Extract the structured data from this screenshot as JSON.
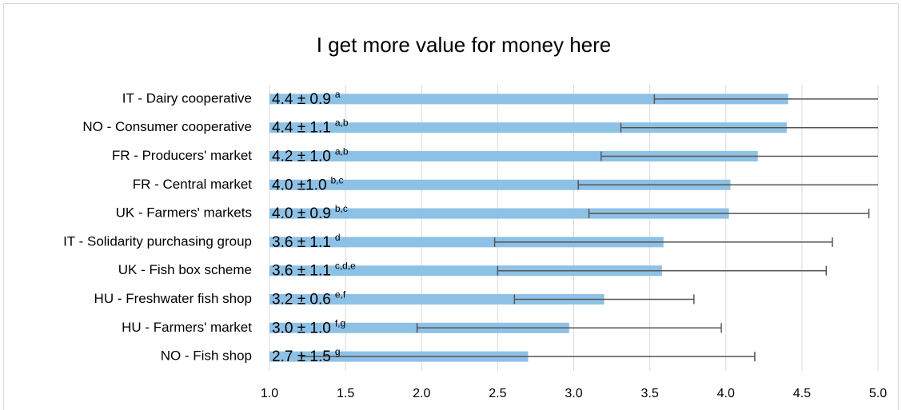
{
  "chart_data": {
    "type": "hbar",
    "title": "I get more value for money here",
    "categories": [
      "IT - Dairy cooperative",
      "NO - Consumer cooperative",
      "FR - Producers' market",
      "FR - Central market",
      "UK - Farmers' markets",
      "IT - Solidarity purchasing group",
      "UK -  Fish box scheme",
      "HU - Freshwater fish shop",
      "HU - Farmers' market",
      "NO - Fish shop"
    ],
    "values": [
      4.41,
      4.4,
      4.21,
      4.03,
      4.02,
      3.59,
      3.58,
      3.2,
      2.97,
      2.7
    ],
    "errors": [
      0.88,
      1.09,
      1.03,
      1.0,
      0.92,
      1.11,
      1.08,
      0.59,
      1.0,
      1.49
    ],
    "value_labels": [
      "4.4 ± 0.9",
      "4.4 ± 1.1",
      "4.2 ± 1.0",
      "4.0 ±1.0",
      "4.0 ± 0.9",
      "3.6 ± 1.1",
      "3.6  ± 1.1",
      "3.2 ± 0.6",
      "3.0 ± 1.0",
      "2.7 ± 1.5"
    ],
    "letters": [
      "a",
      "a,b",
      "a,b",
      "b,c",
      "b,c",
      "d",
      "c,d,e",
      "e,f",
      "f,g",
      "g"
    ],
    "color": "#8ec1e6",
    "error_color": "#555555",
    "xlim": [
      1.0,
      5.0
    ],
    "xticks": [
      {
        "value": 1.0,
        "label": "1.0"
      },
      {
        "value": 1.5,
        "label": "1.5"
      },
      {
        "value": 2.0,
        "label": "2.0"
      },
      {
        "value": 2.5,
        "label": "2.5"
      },
      {
        "value": 3.0,
        "label": "3.0"
      },
      {
        "value": 3.5,
        "label": "3.5"
      },
      {
        "value": 4.0,
        "label": "4.0"
      },
      {
        "value": 4.5,
        "label": "4.5"
      },
      {
        "value": 5.0,
        "label": "5.0"
      }
    ],
    "grid": true
  }
}
